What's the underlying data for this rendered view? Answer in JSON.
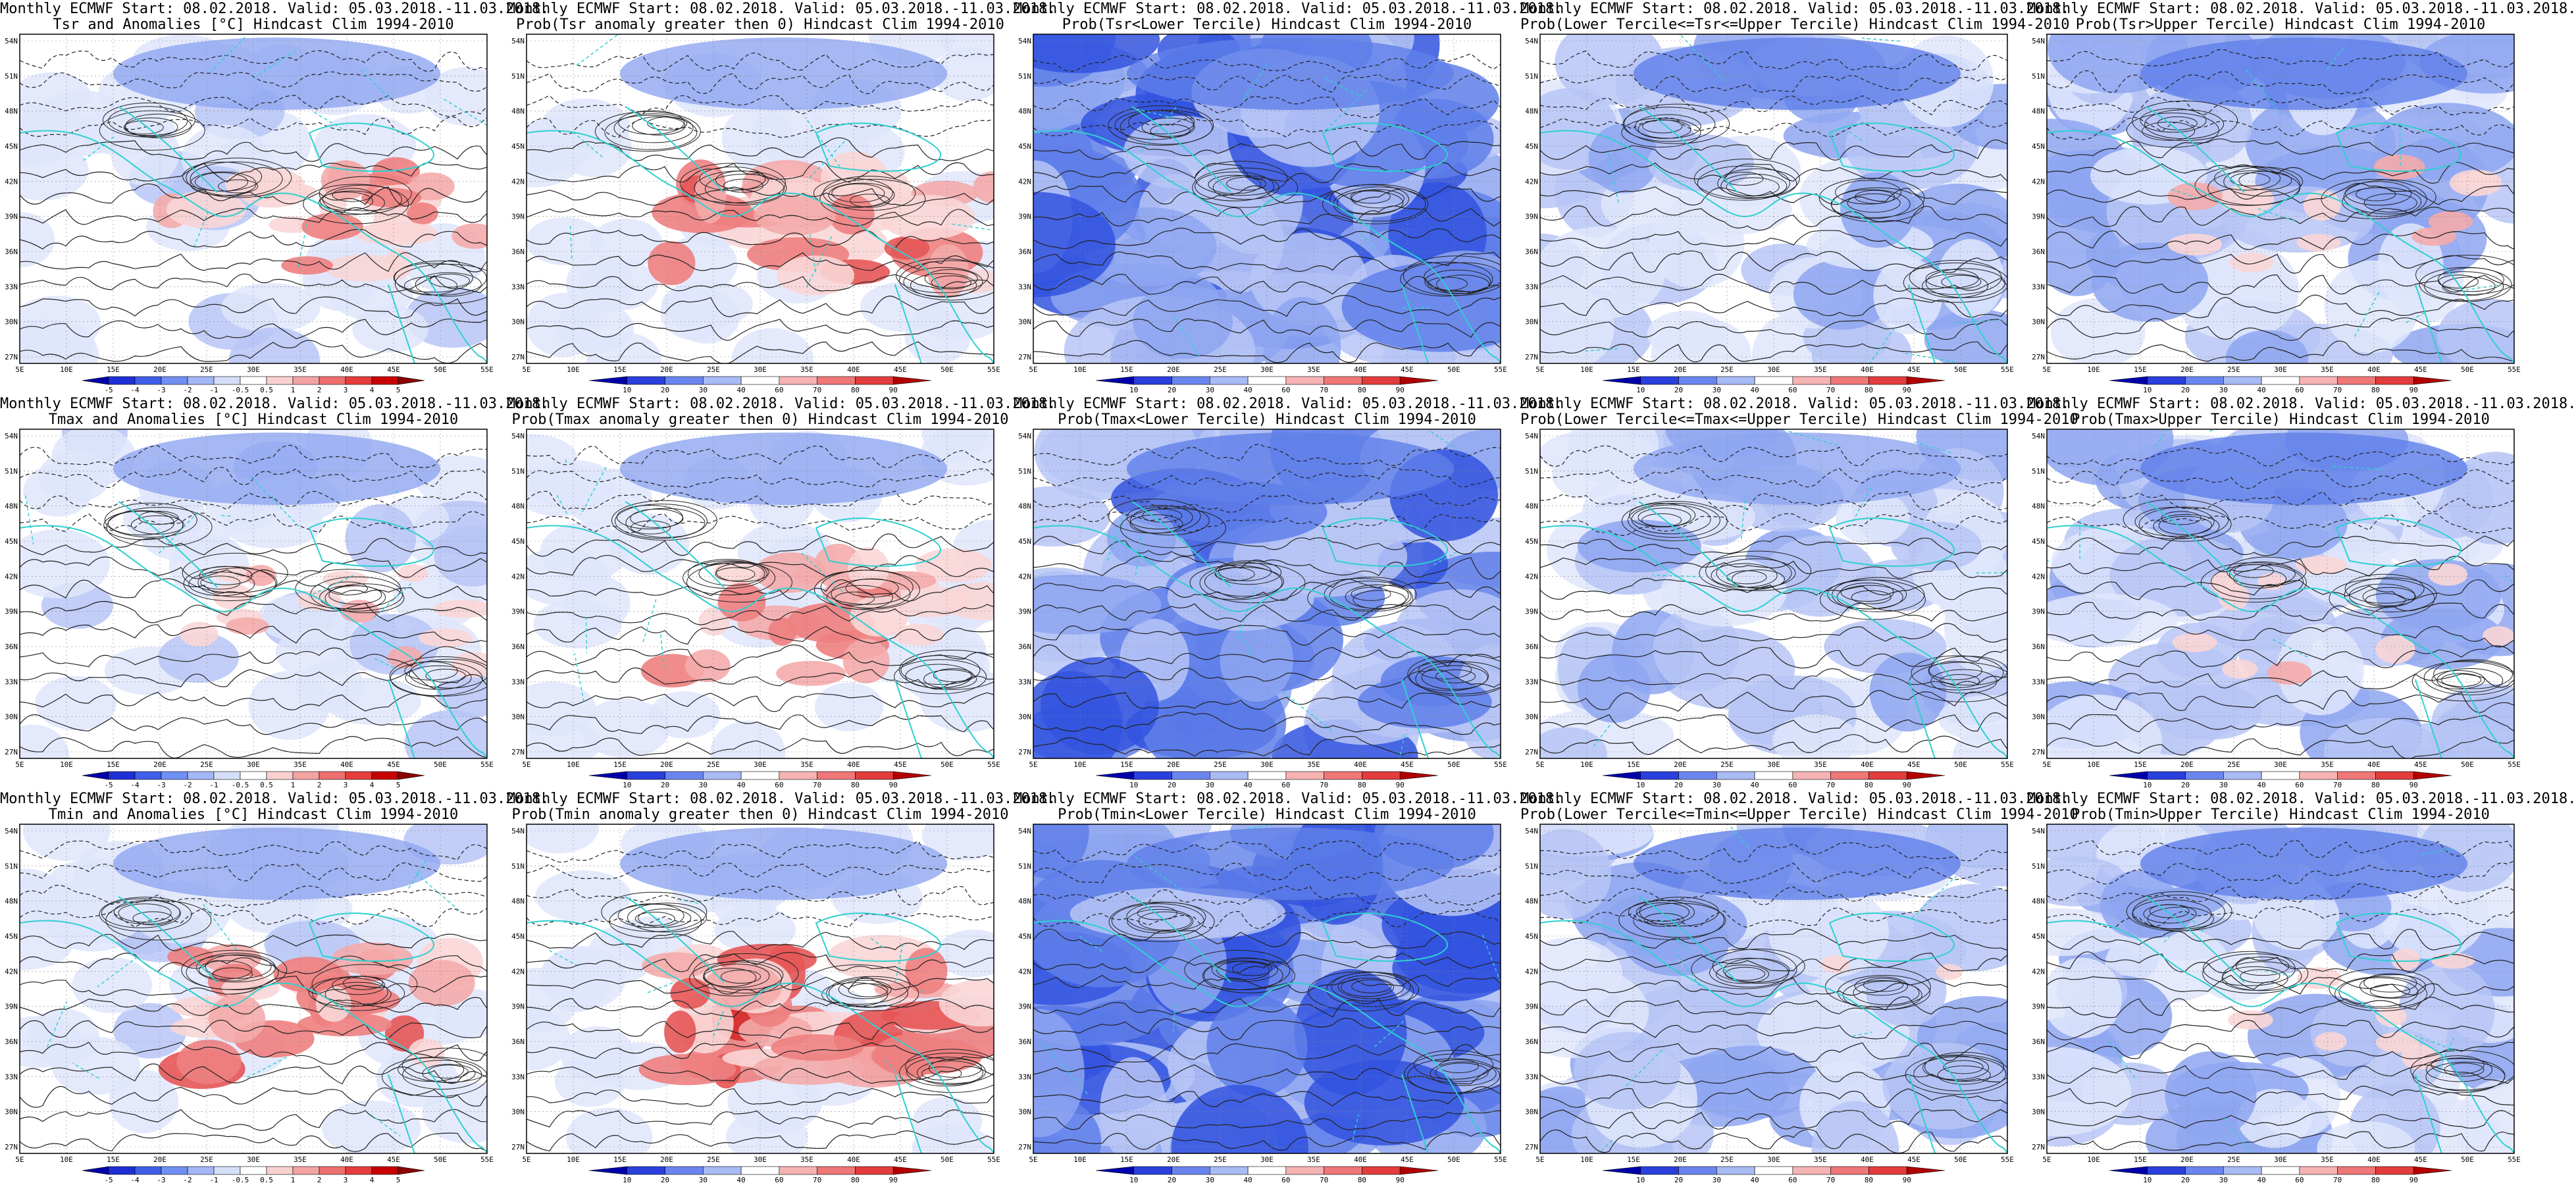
{
  "panels": [
    {
      "id": "tsr-anom",
      "t1": "Monthly ECMWF Start: 08.02.2018. Valid: 05.03.2018.-11.03.2018.",
      "t2": "Tsr and Anomalies [°C] Hindcast Clim 1994-2010",
      "field": "anom",
      "warm": 0.55,
      "cold": 0.25
    },
    {
      "id": "tsr-prob-pos",
      "t1": "Monthly ECMWF Start: 08.02.2018. Valid: 05.03.2018.-11.03.2018.",
      "t2": "Prob(Tsr anomaly greater then 0) Hindcast Clim 1994-2010",
      "field": "prob-red",
      "warm": 0.75,
      "cold": 0.2
    },
    {
      "id": "tsr-prob-lower",
      "t1": "Monthly ECMWF Start: 08.02.2018. Valid: 05.03.2018.-11.03.2018.",
      "t2": "Prob(Tsr<Lower Tercile) Hindcast Clim 1994-2010",
      "field": "prob-blue",
      "warm": 0.0,
      "cold": 0.85
    },
    {
      "id": "tsr-prob-middle",
      "t1": "Monthly ECMWF Start: 08.02.2018. Valid: 05.03.2018.-11.03.2018.",
      "t2": "Prob(Lower Tercile<=Tsr<=Upper Tercile) Hindcast Clim 1994-2010",
      "field": "prob-blue",
      "warm": 0.0,
      "cold": 0.55
    },
    {
      "id": "tsr-prob-upper",
      "t1": "Monthly ECMWF Start: 08.02.2018. Valid: 05.03.2018.-11.03.2018.",
      "t2": "Prob(Tsr>Upper Tercile) Hindcast Clim 1994-2010",
      "field": "prob-blue",
      "warm": 0.3,
      "cold": 0.6
    },
    {
      "id": "tmax-anom",
      "t1": "Monthly ECMWF Start: 08.02.2018. Valid: 05.03.2018.-11.03.2018.",
      "t2": "Tmax and Anomalies [°C] Hindcast Clim 1994-2010",
      "field": "anom",
      "warm": 0.35,
      "cold": 0.25
    },
    {
      "id": "tmax-prob-pos",
      "t1": "Monthly ECMWF Start: 08.02.2018. Valid: 05.03.2018.-11.03.2018.",
      "t2": "Prob(Tmax anomaly greater then 0) Hindcast Clim 1994-2010",
      "field": "prob-red",
      "warm": 0.6,
      "cold": 0.2
    },
    {
      "id": "tmax-prob-lower",
      "t1": "Monthly ECMWF Start: 08.02.2018. Valid: 05.03.2018.-11.03.2018.",
      "t2": "Prob(Tmax<Lower Tercile) Hindcast Clim 1994-2010",
      "field": "prob-blue",
      "warm": 0.0,
      "cold": 0.75
    },
    {
      "id": "tmax-prob-middle",
      "t1": "Monthly ECMWF Start: 08.02.2018. Valid: 05.03.2018.-11.03.2018.",
      "t2": "Prob(Lower Tercile<=Tmax<=Upper Tercile) Hindcast Clim 1994-2010",
      "field": "prob-blue",
      "warm": 0.0,
      "cold": 0.5
    },
    {
      "id": "tmax-prob-upper",
      "t1": "Monthly ECMWF Start: 08.02.2018. Valid: 05.03.2018.-11.03.2018.",
      "t2": "Prob(Tmax>Upper Tercile) Hindcast Clim 1994-2010",
      "field": "prob-blue",
      "warm": 0.25,
      "cold": 0.55
    },
    {
      "id": "tmin-anom",
      "t1": "Monthly ECMWF Start: 08.02.2018. Valid: 05.03.2018.-11.03.2018.",
      "t2": "Tmin and Anomalies [°C] Hindcast Clim 1994-2010",
      "field": "anom",
      "warm": 0.65,
      "cold": 0.25
    },
    {
      "id": "tmin-prob-pos",
      "t1": "Monthly ECMWF Start: 08.02.2018. Valid: 05.03.2018.-11.03.2018.",
      "t2": "Prob(Tmin anomaly greater then 0) Hindcast Clim 1994-2010",
      "field": "prob-red",
      "warm": 0.85,
      "cold": 0.2
    },
    {
      "id": "tmin-prob-lower",
      "t1": "Monthly ECMWF Start: 08.02.2018. Valid: 05.03.2018.-11.03.2018.",
      "t2": "Prob(Tmin<Lower Tercile) Hindcast Clim 1994-2010",
      "field": "prob-blue",
      "warm": 0.0,
      "cold": 0.9
    },
    {
      "id": "tmin-prob-middle",
      "t1": "Monthly ECMWF Start: 08.02.2018. Valid: 05.03.2018.-11.03.2018.",
      "t2": "Prob(Lower Tercile<=Tmin<=Upper Tercile) Hindcast Clim 1994-2010",
      "field": "prob-blue",
      "warm": 0.05,
      "cold": 0.6
    },
    {
      "id": "tmin-prob-upper",
      "t1": "Monthly ECMWF Start: 08.02.2018. Valid: 05.03.2018.-11.03.2018.",
      "t2": "Prob(Tmin>Upper Tercile) Hindcast Clim 1994-2010",
      "field": "prob-blue",
      "warm": 0.2,
      "cold": 0.55
    }
  ],
  "axes": {
    "lon_labels": [
      "5E",
      "10E",
      "15E",
      "20E",
      "25E",
      "30E",
      "35E",
      "40E",
      "45E",
      "50E",
      "55E"
    ],
    "lat_labels": [
      "54N",
      "51N",
      "48N",
      "45N",
      "42N",
      "39N",
      "36N",
      "33N",
      "30N",
      "27N"
    ]
  },
  "colorbars": {
    "anom": {
      "labels": [
        "-5",
        "-4",
        "-3",
        "-2",
        "-1",
        "-0.5",
        "0.5",
        "1",
        "2",
        "3",
        "4",
        "5"
      ],
      "colors": [
        "#0000aa",
        "#1e2fd6",
        "#3f5fe8",
        "#6f8ff2",
        "#a3b7f7",
        "#d5def9",
        "#ffffff",
        "#f9d0d0",
        "#f4a3a3",
        "#ee6f6f",
        "#e63c3c",
        "#c80000",
        "#8b0000"
      ]
    },
    "prob-red": {
      "labels": [
        "10",
        "20",
        "30",
        "40",
        "60",
        "70",
        "80",
        "90"
      ],
      "colors": [
        "#0000aa",
        "#2a3fdc",
        "#6a85ee",
        "#a8bbf5",
        "#ffffff",
        "#f6b3b3",
        "#ee7777",
        "#e23c3c",
        "#b00000"
      ]
    },
    "prob-blue": {
      "labels": [
        "10",
        "20",
        "30",
        "40",
        "60",
        "70",
        "80",
        "90"
      ],
      "colors": [
        "#0000aa",
        "#2a3fdc",
        "#6a85ee",
        "#a8bbf5",
        "#ffffff",
        "#f6b3b3",
        "#ee7777",
        "#e23c3c",
        "#b00000"
      ]
    }
  },
  "colors": {
    "coast": "#2fd0d0",
    "contour": "#222222",
    "grid": "#888888"
  }
}
